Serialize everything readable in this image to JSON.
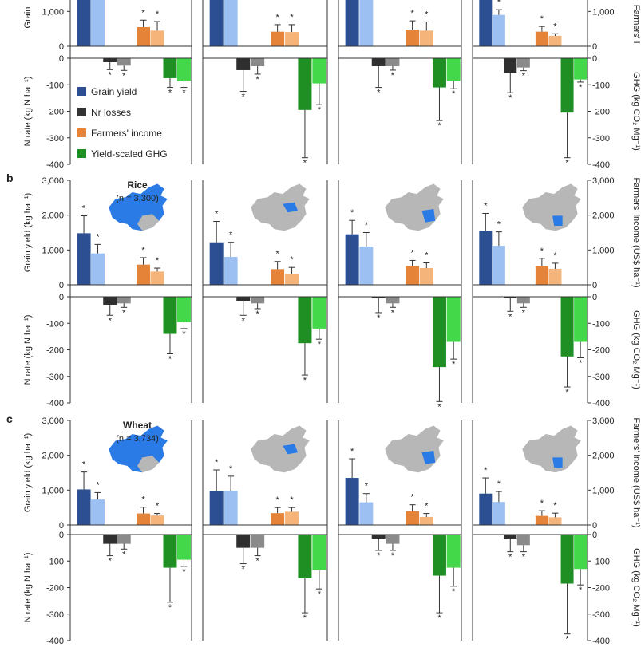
{
  "figure": {
    "panel_letters": [
      "b",
      "c"
    ],
    "crop_labels": [
      {
        "name": "Rice",
        "count": "3,300"
      },
      {
        "name": "Wheat",
        "count": "3,734"
      }
    ],
    "n_prefix": "(n = ",
    "n_suffix": ")",
    "y_left_top": "Grain yield (kg ha⁻¹)",
    "y_left_top_clipped": "Grain",
    "y_left_bottom": "N rate (kg N ha⁻¹)",
    "y_right_top": "Farmers' income (US$ ha⁻¹)",
    "y_right_top_clipped": "Farmers' i",
    "y_right_bottom": "GHG (kg CO₂ Mg⁻¹)",
    "top_ticks": [
      "0",
      "1,000",
      "2,000",
      "3,000"
    ],
    "bottom_ticks": [
      "0",
      "-100",
      "-200",
      "-300",
      "-400"
    ],
    "colors": {
      "grain_dark": "#2b4f92",
      "grain_light": "#9dc0f2",
      "nr_dark": "#2f2f2f",
      "nr_light": "#8a8a8a",
      "income_dark": "#e58438",
      "income_light": "#f4b47a",
      "ghg_dark": "#1f8f24",
      "ghg_light": "#43d84a",
      "map_grey": "#b7b7b7",
      "map_blue": "#2b7be6",
      "axis": "#333333"
    }
  },
  "legend": {
    "items": [
      {
        "label": "Grain yield",
        "color": "#2b4f92"
      },
      {
        "label": "Nr losses",
        "color": "#333333"
      },
      {
        "label": "Farmers' income",
        "color": "#e58438"
      },
      {
        "label": "Yield-scaled GHG",
        "color": "#1f8f24"
      }
    ]
  },
  "chart_data": [
    {
      "type": "bar",
      "panel": "a (partial)",
      "region_index": 0,
      "top": {
        "ylim": [
          0,
          3000
        ],
        "grain": [
          {
            "v": 3000,
            "err": 0
          },
          {
            "v": 3000,
            "err": 0
          }
        ],
        "income": [
          {
            "v": 550,
            "err": 200
          },
          {
            "v": 450,
            "err": 260
          }
        ]
      },
      "bottom": {
        "ylim": [
          -400,
          0
        ],
        "nr": [
          {
            "v": -15,
            "err": 28
          },
          {
            "v": -28,
            "err": 18
          }
        ],
        "ghg": [
          {
            "v": -75,
            "err": 35
          },
          {
            "v": -85,
            "err": 25
          }
        ]
      }
    },
    {
      "type": "bar",
      "panel": "a (partial)",
      "region_index": 1,
      "top": {
        "ylim": [
          0,
          3000
        ],
        "grain": [
          {
            "v": 3000,
            "err": 0
          },
          {
            "v": 3000,
            "err": 0
          }
        ],
        "income": [
          {
            "v": 420,
            "err": 200
          },
          {
            "v": 410,
            "err": 210
          }
        ]
      },
      "bottom": {
        "ylim": [
          -400,
          0
        ],
        "nr": [
          {
            "v": -45,
            "err": 80
          },
          {
            "v": -30,
            "err": 30
          }
        ],
        "ghg": [
          {
            "v": -195,
            "err": 180
          },
          {
            "v": -95,
            "err": 80
          }
        ]
      }
    },
    {
      "type": "bar",
      "panel": "a (partial)",
      "region_index": 2,
      "top": {
        "ylim": [
          0,
          3000
        ],
        "grain": [
          {
            "v": 3000,
            "err": 0
          },
          {
            "v": 3000,
            "err": 0
          }
        ],
        "income": [
          {
            "v": 480,
            "err": 250
          },
          {
            "v": 450,
            "err": 250
          }
        ]
      },
      "bottom": {
        "ylim": [
          -400,
          0
        ],
        "nr": [
          {
            "v": -30,
            "err": 80
          },
          {
            "v": -30,
            "err": 15
          }
        ],
        "ghg": [
          {
            "v": -110,
            "err": 125
          },
          {
            "v": -85,
            "err": 30
          }
        ]
      }
    },
    {
      "type": "bar",
      "panel": "a (partial)",
      "region_index": 3,
      "top": {
        "ylim": [
          0,
          3000
        ],
        "grain": [
          {
            "v": 3000,
            "err": 0
          },
          {
            "v": 900,
            "err": 150
          }
        ],
        "income": [
          {
            "v": 420,
            "err": 150
          },
          {
            "v": 300,
            "err": 60
          }
        ]
      },
      "bottom": {
        "ylim": [
          -400,
          0
        ],
        "nr": [
          {
            "v": -55,
            "err": 75
          },
          {
            "v": -35,
            "err": 12
          }
        ],
        "ghg": [
          {
            "v": -205,
            "err": 170
          },
          {
            "v": -80,
            "err": 10
          }
        ]
      }
    },
    {
      "type": "bar",
      "panel": "b",
      "crop": "Rice",
      "region_index": 0,
      "top": {
        "ylim": [
          0,
          3000
        ],
        "grain": [
          {
            "v": 1480,
            "err": 500
          },
          {
            "v": 900,
            "err": 260
          }
        ],
        "income": [
          {
            "v": 580,
            "err": 200
          },
          {
            "v": 380,
            "err": 100
          }
        ]
      },
      "bottom": {
        "ylim": [
          -400,
          0
        ],
        "nr": [
          {
            "v": -30,
            "err": 40
          },
          {
            "v": -25,
            "err": 15
          }
        ],
        "ghg": [
          {
            "v": -140,
            "err": 75
          },
          {
            "v": -95,
            "err": 25
          }
        ]
      }
    },
    {
      "type": "bar",
      "panel": "b",
      "crop": "Rice",
      "region_index": 1,
      "top": {
        "ylim": [
          0,
          3000
        ],
        "grain": [
          {
            "v": 1220,
            "err": 600
          },
          {
            "v": 800,
            "err": 420
          }
        ],
        "income": [
          {
            "v": 450,
            "err": 220
          },
          {
            "v": 320,
            "err": 180
          }
        ]
      },
      "bottom": {
        "ylim": [
          -400,
          0
        ],
        "nr": [
          {
            "v": -15,
            "err": 55
          },
          {
            "v": -25,
            "err": 20
          }
        ],
        "ghg": [
          {
            "v": -175,
            "err": 120
          },
          {
            "v": -120,
            "err": 40
          }
        ]
      }
    },
    {
      "type": "bar",
      "panel": "b",
      "crop": "Rice",
      "region_index": 2,
      "top": {
        "ylim": [
          0,
          3000
        ],
        "grain": [
          {
            "v": 1450,
            "err": 400
          },
          {
            "v": 1100,
            "err": 400
          }
        ],
        "income": [
          {
            "v": 540,
            "err": 160
          },
          {
            "v": 480,
            "err": 150
          }
        ]
      },
      "bottom": {
        "ylim": [
          -400,
          0
        ],
        "nr": [
          {
            "v": -5,
            "err": 55
          },
          {
            "v": -25,
            "err": 15
          }
        ],
        "ghg": [
          {
            "v": -265,
            "err": 130
          },
          {
            "v": -170,
            "err": 65
          }
        ]
      }
    },
    {
      "type": "bar",
      "panel": "b",
      "crop": "Rice",
      "region_index": 3,
      "top": {
        "ylim": [
          0,
          3000
        ],
        "grain": [
          {
            "v": 1550,
            "err": 500
          },
          {
            "v": 1120,
            "err": 400
          }
        ],
        "income": [
          {
            "v": 540,
            "err": 220
          },
          {
            "v": 460,
            "err": 160
          }
        ]
      },
      "bottom": {
        "ylim": [
          -400,
          0
        ],
        "nr": [
          {
            "v": -5,
            "err": 50
          },
          {
            "v": -25,
            "err": 15
          }
        ],
        "ghg": [
          {
            "v": -225,
            "err": 115
          },
          {
            "v": -170,
            "err": 60
          }
        ]
      }
    },
    {
      "type": "bar",
      "panel": "c",
      "crop": "Wheat",
      "region_index": 0,
      "top": {
        "ylim": [
          0,
          3000
        ],
        "grain": [
          {
            "v": 1020,
            "err": 500
          },
          {
            "v": 730,
            "err": 200
          }
        ],
        "income": [
          {
            "v": 330,
            "err": 180
          },
          {
            "v": 270,
            "err": 60
          }
        ]
      },
      "bottom": {
        "ylim": [
          -400,
          0
        ],
        "nr": [
          {
            "v": -35,
            "err": 45
          },
          {
            "v": -35,
            "err": 20
          }
        ],
        "ghg": [
          {
            "v": -125,
            "err": 130
          },
          {
            "v": -95,
            "err": 25
          }
        ]
      }
    },
    {
      "type": "bar",
      "panel": "c",
      "crop": "Wheat",
      "region_index": 1,
      "top": {
        "ylim": [
          0,
          3000
        ],
        "grain": [
          {
            "v": 980,
            "err": 600
          },
          {
            "v": 980,
            "err": 420
          }
        ],
        "income": [
          {
            "v": 340,
            "err": 160
          },
          {
            "v": 380,
            "err": 120
          }
        ]
      },
      "bottom": {
        "ylim": [
          -400,
          0
        ],
        "nr": [
          {
            "v": -50,
            "err": 60
          },
          {
            "v": -50,
            "err": 30
          }
        ],
        "ghg": [
          {
            "v": -165,
            "err": 130
          },
          {
            "v": -135,
            "err": 70
          }
        ]
      }
    },
    {
      "type": "bar",
      "panel": "c",
      "crop": "Wheat",
      "region_index": 2,
      "top": {
        "ylim": [
          0,
          3000
        ],
        "grain": [
          {
            "v": 1350,
            "err": 550
          },
          {
            "v": 650,
            "err": 250
          }
        ],
        "income": [
          {
            "v": 400,
            "err": 180
          },
          {
            "v": 230,
            "err": 100
          }
        ]
      },
      "bottom": {
        "ylim": [
          -400,
          0
        ],
        "nr": [
          {
            "v": -15,
            "err": 45
          },
          {
            "v": -35,
            "err": 25
          }
        ],
        "ghg": [
          {
            "v": -155,
            "err": 140
          },
          {
            "v": -125,
            "err": 70
          }
        ]
      }
    },
    {
      "type": "bar",
      "panel": "c",
      "crop": "Wheat",
      "region_index": 3,
      "top": {
        "ylim": [
          0,
          3000
        ],
        "grain": [
          {
            "v": 900,
            "err": 450
          },
          {
            "v": 660,
            "err": 300
          }
        ],
        "income": [
          {
            "v": 260,
            "err": 150
          },
          {
            "v": 220,
            "err": 120
          }
        ]
      },
      "bottom": {
        "ylim": [
          -400,
          0
        ],
        "nr": [
          {
            "v": -15,
            "err": 50
          },
          {
            "v": -40,
            "err": 25
          }
        ],
        "ghg": [
          {
            "v": -185,
            "err": 190
          },
          {
            "v": -130,
            "err": 60
          }
        ]
      }
    }
  ]
}
